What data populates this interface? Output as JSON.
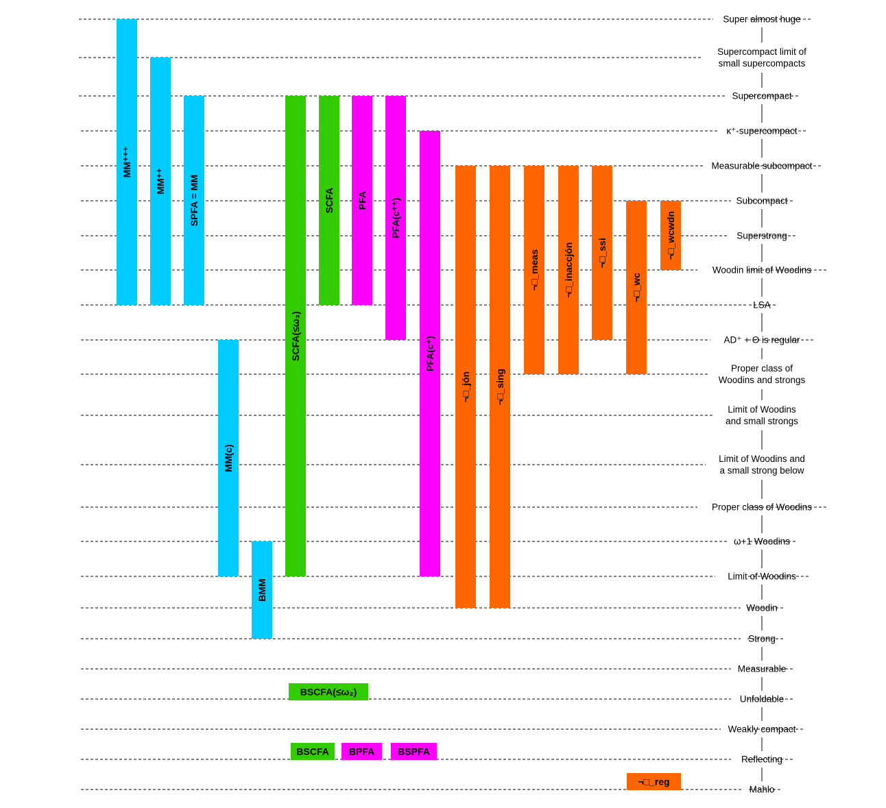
{
  "colors": {
    "cyan": "#00ccff",
    "green": "#33cc00",
    "magenta": "#ff00ff",
    "orange": "#ff6600",
    "line": "#000000"
  },
  "levels": [
    {
      "id": "super-almost-huge",
      "lines": [
        "Super almost huge"
      ]
    },
    {
      "id": "supercompact-limit",
      "lines": [
        "Supercompact limit of",
        "small supercompacts"
      ]
    },
    {
      "id": "supercompact",
      "lines": [
        "Supercompact"
      ]
    },
    {
      "id": "kappa-plus-supercompact",
      "lines": [
        "κ⁺-supercompact"
      ]
    },
    {
      "id": "measurable-subcompact",
      "lines": [
        "Measurable subcompact"
      ]
    },
    {
      "id": "subcompact",
      "lines": [
        "Subcompact"
      ]
    },
    {
      "id": "superstrong",
      "lines": [
        "Superstrong"
      ]
    },
    {
      "id": "woodin-limit-of-woodins",
      "lines": [
        "Woodin limit of Woodins"
      ]
    },
    {
      "id": "lsa",
      "lines": [
        "LSA"
      ]
    },
    {
      "id": "ad-plus-theta-regular",
      "lines": [
        "AD⁺ + Θ is regular"
      ]
    },
    {
      "id": "proper-class-woodins-strongs",
      "lines": [
        "Proper class of",
        "Woodins and strongs"
      ]
    },
    {
      "id": "limit-woodins-small-strongs",
      "lines": [
        "Limit of Woodins",
        "and small strongs"
      ]
    },
    {
      "id": "limit-woodins-strong-below",
      "lines": [
        "Limit of Woodins and",
        "a small strong below"
      ]
    },
    {
      "id": "proper-class-woodins",
      "lines": [
        "Proper class of Woodins"
      ]
    },
    {
      "id": "omega-plus-one-woodins",
      "lines": [
        "ω+1 Woodins"
      ]
    },
    {
      "id": "limit-of-woodins",
      "lines": [
        "Limit of Woodins"
      ]
    },
    {
      "id": "woodin",
      "lines": [
        "Woodin"
      ]
    },
    {
      "id": "strong",
      "lines": [
        "Strong"
      ]
    },
    {
      "id": "measurable",
      "lines": [
        "Measurable"
      ]
    },
    {
      "id": "unfoldable",
      "lines": [
        "Unfoldable"
      ]
    },
    {
      "id": "weakly-compact",
      "lines": [
        "Weakly compact"
      ]
    },
    {
      "id": "reflecting",
      "lines": [
        "Reflecting"
      ]
    },
    {
      "id": "mahlo",
      "lines": [
        "Mahlo"
      ]
    }
  ],
  "vertical_bars": [
    {
      "id": "mm-plus-plus-plus",
      "label": "MM⁺⁺⁺",
      "color": "cyan",
      "top": "super-almost-huge",
      "bottom": "lsa"
    },
    {
      "id": "mm-plus-plus",
      "label": "MM⁺⁺",
      "color": "cyan",
      "top": "supercompact-limit",
      "bottom": "lsa"
    },
    {
      "id": "spfa-mm",
      "label": "SPFA = MM",
      "color": "cyan",
      "top": "supercompact",
      "bottom": "lsa"
    },
    {
      "id": "mm-c",
      "label": "MM(c)",
      "color": "cyan",
      "top": "ad-plus-theta-regular",
      "bottom": "limit-of-woodins"
    },
    {
      "id": "bmm",
      "label": "BMM",
      "color": "cyan",
      "top": "omega-plus-one-woodins",
      "bottom": "strong"
    },
    {
      "id": "scfa-omega3",
      "label": "SCFA(≤ω₃)",
      "color": "green",
      "top": "supercompact",
      "bottom": "limit-of-woodins"
    },
    {
      "id": "scfa",
      "label": "SCFA",
      "color": "green",
      "top": "supercompact",
      "bottom": "lsa"
    },
    {
      "id": "pfa",
      "label": "PFA",
      "color": "magenta",
      "top": "supercompact",
      "bottom": "lsa"
    },
    {
      "id": "pfa-c-plus-plus",
      "label": "PFA(c⁺⁺)",
      "color": "magenta",
      "top": "supercompact",
      "bottom": "ad-plus-theta-regular"
    },
    {
      "id": "pfa-c-plus",
      "label": "PFA(c⁺)",
      "color": "magenta",
      "top": "kappa-plus-supercompact",
      "bottom": "limit-of-woodins"
    },
    {
      "id": "not-box-jon",
      "label": "¬□_jón",
      "color": "orange",
      "top": "measurable-subcompact",
      "bottom": "woodin"
    },
    {
      "id": "not-box-sing",
      "label": "¬□_sing",
      "color": "orange",
      "top": "measurable-subcompact",
      "bottom": "woodin"
    },
    {
      "id": "not-box-meas",
      "label": "¬□_meas",
      "color": "orange",
      "top": "measurable-subcompact",
      "bottom": "proper-class-woodins-strongs"
    },
    {
      "id": "not-box-inaccjon",
      "label": "¬□_inaccjón",
      "color": "orange",
      "top": "measurable-subcompact",
      "bottom": "proper-class-woodins-strongs"
    },
    {
      "id": "not-box-ssi",
      "label": "¬□_ssi",
      "color": "orange",
      "top": "measurable-subcompact",
      "bottom": "ad-plus-theta-regular"
    },
    {
      "id": "not-box-wc",
      "label": "¬□_wc",
      "color": "orange",
      "top": "subcompact",
      "bottom": "proper-class-woodins-strongs"
    },
    {
      "id": "not-box-wcwdn",
      "label": "¬□_wcwdn",
      "color": "orange",
      "top": "subcompact",
      "bottom": "woodin-limit-of-woodins"
    }
  ],
  "box_labels": [
    {
      "id": "bscfa-omega2",
      "label": "BSCFA(≤ω₂)",
      "color": "green",
      "level": "unfoldable"
    },
    {
      "id": "bscfa",
      "label": "BSCFA",
      "color": "green",
      "level": "reflecting"
    },
    {
      "id": "bpfa",
      "label": "BPFA",
      "color": "magenta",
      "level": "reflecting"
    },
    {
      "id": "bspfa",
      "label": "BSPFA",
      "color": "magenta",
      "level": "reflecting"
    },
    {
      "id": "not-box-reg",
      "label": "¬□_reg",
      "color": "orange",
      "level": "mahlo"
    }
  ]
}
